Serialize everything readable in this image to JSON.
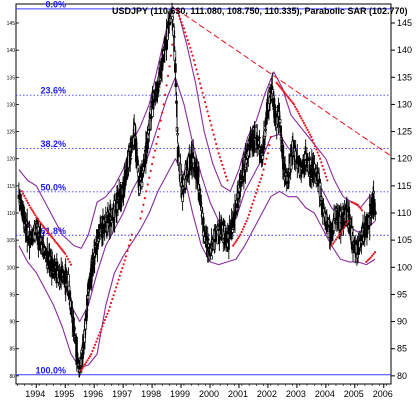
{
  "chart_data": {
    "type": "candlestick",
    "title": "USDJPY (110.630, 111.080, 108.750, 110.335), Parabolic SAR (102.770)",
    "ylim": [
      78.5,
      148.5
    ],
    "xlim": [
      1993.2,
      2006.15
    ],
    "right_ticks": [
      145,
      140,
      135,
      130,
      125,
      120,
      115,
      110,
      105,
      100,
      95,
      90,
      85,
      80
    ],
    "left_ticks": [
      145,
      140,
      135,
      130,
      125,
      120,
      115,
      110,
      105,
      100,
      95,
      90,
      85,
      80
    ],
    "x_ticks": [
      {
        "label": "1994",
        "x": 1993.9
      },
      {
        "label": "1995",
        "x": 1994.9
      },
      {
        "label": "1996",
        "x": 1995.9
      },
      {
        "label": "1997",
        "x": 1996.9
      },
      {
        "label": "1998",
        "x": 1997.9
      },
      {
        "label": "1999",
        "x": 1998.9
      },
      {
        "label": "2000",
        "x": 1999.9
      },
      {
        "label": "2001",
        "x": 2000.9
      },
      {
        "label": "2002",
        "x": 2001.9
      },
      {
        "label": "2003",
        "x": 2002.9
      },
      {
        "label": "2004",
        "x": 2003.9
      },
      {
        "label": "2005",
        "x": 2004.9
      },
      {
        "label": "2006",
        "x": 2005.9
      }
    ],
    "fib_levels": [
      {
        "label": "0.0%",
        "value": 147.6
      },
      {
        "label": "23.6%",
        "value": 131.7
      },
      {
        "label": "38.2%",
        "value": 121.9
      },
      {
        "label": "50.0%",
        "value": 113.9
      },
      {
        "label": "61.8%",
        "value": 105.9
      },
      {
        "label": "100.0%",
        "value": 80.2
      }
    ],
    "price": [
      [
        1993.3,
        113.5
      ],
      [
        1993.5,
        108
      ],
      [
        1993.7,
        105
      ],
      [
        1993.9,
        107
      ],
      [
        1994.1,
        104
      ],
      [
        1994.3,
        101.5
      ],
      [
        1994.5,
        100
      ],
      [
        1994.7,
        98.5
      ],
      [
        1994.85,
        98.5
      ],
      [
        1995.0,
        97
      ],
      [
        1995.15,
        91
      ],
      [
        1995.3,
        84
      ],
      [
        1995.4,
        81
      ],
      [
        1995.55,
        86
      ],
      [
        1995.7,
        96
      ],
      [
        1995.9,
        102
      ],
      [
        1996.1,
        107
      ],
      [
        1996.3,
        108
      ],
      [
        1996.5,
        109
      ],
      [
        1996.7,
        112
      ],
      [
        1996.9,
        114
      ],
      [
        1997.1,
        120
      ],
      [
        1997.3,
        125
      ],
      [
        1997.45,
        115
      ],
      [
        1997.6,
        118
      ],
      [
        1997.8,
        126
      ],
      [
        1997.95,
        131
      ],
      [
        1998.1,
        133
      ],
      [
        1998.3,
        139
      ],
      [
        1998.45,
        144
      ],
      [
        1998.58,
        147
      ],
      [
        1998.68,
        140
      ],
      [
        1998.8,
        121
      ],
      [
        1998.95,
        114
      ],
      [
        1999.1,
        118
      ],
      [
        1999.3,
        120
      ],
      [
        1999.5,
        116
      ],
      [
        1999.7,
        106
      ],
      [
        1999.9,
        103
      ],
      [
        2000.1,
        106
      ],
      [
        2000.3,
        107
      ],
      [
        2000.5,
        105
      ],
      [
        2000.7,
        108
      ],
      [
        2000.9,
        114
      ],
      [
        2001.1,
        119
      ],
      [
        2001.3,
        123
      ],
      [
        2001.5,
        124
      ],
      [
        2001.7,
        120
      ],
      [
        2001.9,
        130
      ],
      [
        2002.05,
        133
      ],
      [
        2002.15,
        127
      ],
      [
        2002.3,
        128
      ],
      [
        2002.45,
        118
      ],
      [
        2002.6,
        116
      ],
      [
        2002.75,
        122
      ],
      [
        2002.9,
        120
      ],
      [
        2003.05,
        118
      ],
      [
        2003.2,
        120
      ],
      [
        2003.35,
        118
      ],
      [
        2003.5,
        118
      ],
      [
        2003.65,
        116
      ],
      [
        2003.8,
        110
      ],
      [
        2003.95,
        108
      ],
      [
        2004.1,
        106
      ],
      [
        2004.25,
        110
      ],
      [
        2004.4,
        108
      ],
      [
        2004.55,
        110
      ],
      [
        2004.7,
        109
      ],
      [
        2004.85,
        104
      ],
      [
        2005.0,
        103
      ],
      [
        2005.15,
        106
      ],
      [
        2005.3,
        107
      ],
      [
        2005.45,
        110
      ],
      [
        2005.55,
        112
      ],
      [
        2005.62,
        110.3
      ]
    ],
    "bb_upper": [
      [
        1993.3,
        118
      ],
      [
        1993.6,
        116
      ],
      [
        1993.9,
        115
      ],
      [
        1994.2,
        112
      ],
      [
        1994.5,
        109
      ],
      [
        1994.8,
        106
      ],
      [
        1995.0,
        105
      ],
      [
        1995.2,
        104
      ],
      [
        1995.45,
        103.5
      ],
      [
        1995.7,
        106
      ],
      [
        1996.0,
        112
      ],
      [
        1996.3,
        113
      ],
      [
        1996.6,
        115
      ],
      [
        1996.9,
        118
      ],
      [
        1997.2,
        123
      ],
      [
        1997.5,
        126
      ],
      [
        1997.8,
        130
      ],
      [
        1998.1,
        137
      ],
      [
        1998.4,
        144
      ],
      [
        1998.6,
        148
      ],
      [
        1998.8,
        147
      ],
      [
        1999.1,
        141
      ],
      [
        1999.4,
        134
      ],
      [
        1999.7,
        125
      ],
      [
        2000.0,
        119
      ],
      [
        2000.3,
        115
      ],
      [
        2000.6,
        114
      ],
      [
        2000.9,
        118
      ],
      [
        2001.2,
        124
      ],
      [
        2001.5,
        127
      ],
      [
        2001.8,
        132
      ],
      [
        2002.1,
        136
      ],
      [
        2002.4,
        133
      ],
      [
        2002.7,
        128
      ],
      [
        2003.0,
        126
      ],
      [
        2003.3,
        124
      ],
      [
        2003.6,
        122
      ],
      [
        2003.9,
        120
      ],
      [
        2004.2,
        116
      ],
      [
        2004.5,
        113
      ],
      [
        2004.8,
        112
      ],
      [
        2005.1,
        111
      ],
      [
        2005.4,
        113
      ],
      [
        2005.6,
        114
      ]
    ],
    "bb_middle": [
      [
        1993.3,
        111
      ],
      [
        1993.6,
        108.5
      ],
      [
        1993.9,
        106
      ],
      [
        1994.2,
        103.5
      ],
      [
        1994.5,
        101
      ],
      [
        1994.8,
        98
      ],
      [
        1995.1,
        93
      ],
      [
        1995.4,
        90
      ],
      [
        1995.7,
        93
      ],
      [
        1996.0,
        99
      ],
      [
        1996.3,
        104
      ],
      [
        1996.6,
        107
      ],
      [
        1996.9,
        110
      ],
      [
        1997.2,
        114
      ],
      [
        1997.5,
        117
      ],
      [
        1997.8,
        121
      ],
      [
        1998.1,
        126
      ],
      [
        1998.4,
        131
      ],
      [
        1998.7,
        135
      ],
      [
        1999.0,
        130
      ],
      [
        1999.3,
        123
      ],
      [
        1999.6,
        117
      ],
      [
        1999.9,
        112
      ],
      [
        2000.2,
        108.5
      ],
      [
        2000.5,
        107
      ],
      [
        2000.8,
        109
      ],
      [
        2001.1,
        114
      ],
      [
        2001.4,
        117
      ],
      [
        2001.7,
        120
      ],
      [
        2002.0,
        124
      ],
      [
        2002.3,
        124.5
      ],
      [
        2002.6,
        122
      ],
      [
        2002.9,
        120.5
      ],
      [
        2003.2,
        119
      ],
      [
        2003.5,
        117
      ],
      [
        2003.8,
        114
      ],
      [
        2004.1,
        111
      ],
      [
        2004.4,
        109
      ],
      [
        2004.7,
        107.5
      ],
      [
        2005.0,
        106.5
      ],
      [
        2005.3,
        107
      ],
      [
        2005.6,
        108.5
      ]
    ],
    "bb_lower": [
      [
        1993.3,
        104
      ],
      [
        1993.6,
        101
      ],
      [
        1993.9,
        99
      ],
      [
        1994.2,
        96
      ],
      [
        1994.5,
        93
      ],
      [
        1994.8,
        89
      ],
      [
        1995.1,
        84
      ],
      [
        1995.4,
        81.5
      ],
      [
        1995.7,
        82
      ],
      [
        1996.0,
        84
      ],
      [
        1996.3,
        93
      ],
      [
        1996.6,
        99
      ],
      [
        1996.9,
        102
      ],
      [
        1997.2,
        104.5
      ],
      [
        1997.5,
        107
      ],
      [
        1997.8,
        110
      ],
      [
        1998.1,
        114
      ],
      [
        1998.4,
        117
      ],
      [
        1998.7,
        120
      ],
      [
        1999.0,
        117
      ],
      [
        1999.3,
        110
      ],
      [
        1999.6,
        104
      ],
      [
        1999.9,
        101
      ],
      [
        2000.2,
        100.5
      ],
      [
        2000.5,
        101
      ],
      [
        2000.8,
        101.5
      ],
      [
        2001.1,
        104
      ],
      [
        2001.4,
        107
      ],
      [
        2001.7,
        110
      ],
      [
        2002.0,
        113
      ],
      [
        2002.3,
        114
      ],
      [
        2002.6,
        113
      ],
      [
        2002.9,
        113
      ],
      [
        2003.2,
        111
      ],
      [
        2003.5,
        110
      ],
      [
        2003.8,
        107
      ],
      [
        2004.1,
        104
      ],
      [
        2004.4,
        101.5
      ],
      [
        2004.7,
        101
      ],
      [
        2005.0,
        101
      ],
      [
        2005.3,
        100.5
      ],
      [
        2005.6,
        101.5
      ]
    ],
    "sar_segments": [
      [
        [
          1993.4,
          114
        ],
        [
          1993.7,
          111
        ],
        [
          1994.0,
          108.5
        ],
        [
          1994.3,
          106.5
        ],
        [
          1994.6,
          104.5
        ],
        [
          1994.9,
          102.5
        ],
        [
          1995.1,
          100.5
        ]
      ],
      [
        [
          1995.45,
          81
        ],
        [
          1995.8,
          84
        ],
        [
          1996.1,
          88
        ],
        [
          1996.4,
          92
        ],
        [
          1996.7,
          97
        ],
        [
          1997.0,
          102
        ],
        [
          1997.2,
          106
        ]
      ],
      [
        [
          1997.5,
          109
        ],
        [
          1997.7,
          114
        ],
        [
          1997.9,
          119
        ],
        [
          1998.1,
          124
        ],
        [
          1998.3,
          130
        ],
        [
          1998.5,
          137
        ],
        [
          1998.6,
          141
        ]
      ],
      [
        [
          1998.75,
          147.5
        ],
        [
          1999.0,
          144
        ],
        [
          1999.3,
          139
        ],
        [
          1999.6,
          133
        ],
        [
          1999.9,
          127
        ],
        [
          2000.2,
          121
        ],
        [
          2000.5,
          116
        ]
      ],
      [
        [
          2000.7,
          104
        ],
        [
          2000.95,
          106
        ],
        [
          2001.2,
          109
        ],
        [
          2001.45,
          113
        ],
        [
          2001.7,
          117
        ],
        [
          2001.9,
          121
        ],
        [
          2002.0,
          124
        ]
      ],
      [
        [
          2002.2,
          134
        ],
        [
          2002.5,
          132
        ],
        [
          2002.8,
          130
        ],
        [
          2003.1,
          127
        ],
        [
          2003.4,
          124
        ],
        [
          2003.7,
          120
        ],
        [
          2003.95,
          116
        ]
      ],
      [
        [
          2004.1,
          104
        ],
        [
          2004.3,
          105.5
        ],
        [
          2004.5,
          107
        ],
        [
          2004.65,
          108.5
        ]
      ],
      [
        [
          2004.8,
          112
        ],
        [
          2005.0,
          111.5
        ],
        [
          2005.15,
          110.5
        ]
      ],
      [
        [
          2005.3,
          101
        ],
        [
          2005.45,
          101.8
        ],
        [
          2005.6,
          102.8
        ]
      ]
    ],
    "trendline": [
      [
        1998.75,
        147.5
      ],
      [
        2006.15,
        120.5
      ]
    ]
  }
}
